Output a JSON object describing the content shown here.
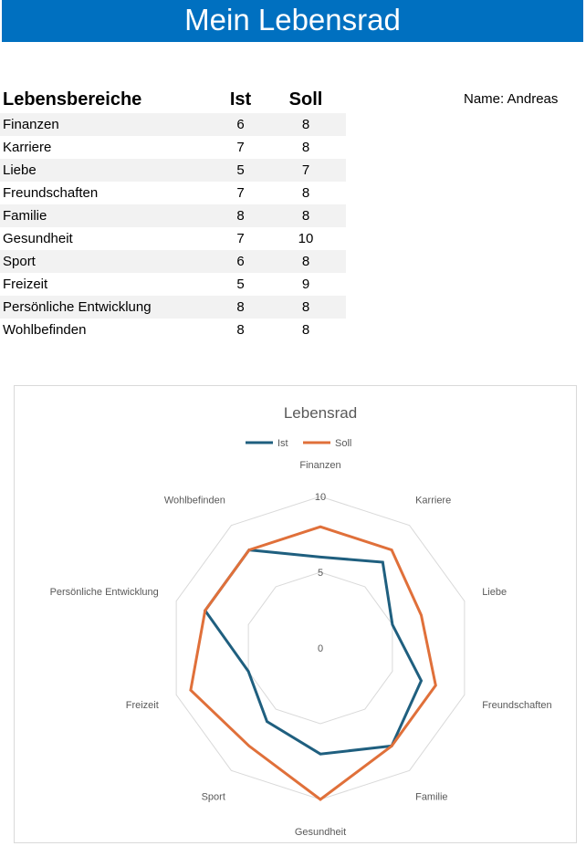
{
  "header": {
    "title": "Mein Lebensrad"
  },
  "name_label": "Name: Andreas",
  "table": {
    "headers": {
      "area": "Lebensbereiche",
      "ist": "Ist",
      "soll": "Soll"
    },
    "rows": [
      {
        "area": "Finanzen",
        "ist": "6",
        "soll": "8"
      },
      {
        "area": "Karriere",
        "ist": "7",
        "soll": "8"
      },
      {
        "area": "Liebe",
        "ist": "5",
        "soll": "7"
      },
      {
        "area": "Freundschaften",
        "ist": "7",
        "soll": "8"
      },
      {
        "area": "Familie",
        "ist": "8",
        "soll": "8"
      },
      {
        "area": "Gesundheit",
        "ist": "7",
        "soll": "10"
      },
      {
        "area": "Sport",
        "ist": "6",
        "soll": "8"
      },
      {
        "area": "Freizeit",
        "ist": "5",
        "soll": "9"
      },
      {
        "area": "Persönliche Entwicklung",
        "ist": "8",
        "soll": "8"
      },
      {
        "area": "Wohlbefinden",
        "ist": "8",
        "soll": "8"
      }
    ]
  },
  "chart_data": {
    "type": "radar",
    "title": "Lebensrad",
    "categories": [
      "Finanzen",
      "Karriere",
      "Liebe",
      "Freundschaften",
      "Familie",
      "Gesundheit",
      "Sport",
      "Freizeit",
      "Persönliche Entwicklung",
      "Wohlbefinden"
    ],
    "series": [
      {
        "name": "Ist",
        "values": [
          6,
          7,
          5,
          7,
          8,
          7,
          6,
          5,
          8,
          8
        ],
        "color": "#1f5f7f"
      },
      {
        "name": "Soll",
        "values": [
          8,
          8,
          7,
          8,
          8,
          10,
          8,
          9,
          8,
          8
        ],
        "color": "#e0703a"
      }
    ],
    "rlim": [
      0,
      10
    ],
    "ticks": [
      0,
      5,
      10
    ],
    "gridlines": true,
    "legend_position": "top"
  }
}
